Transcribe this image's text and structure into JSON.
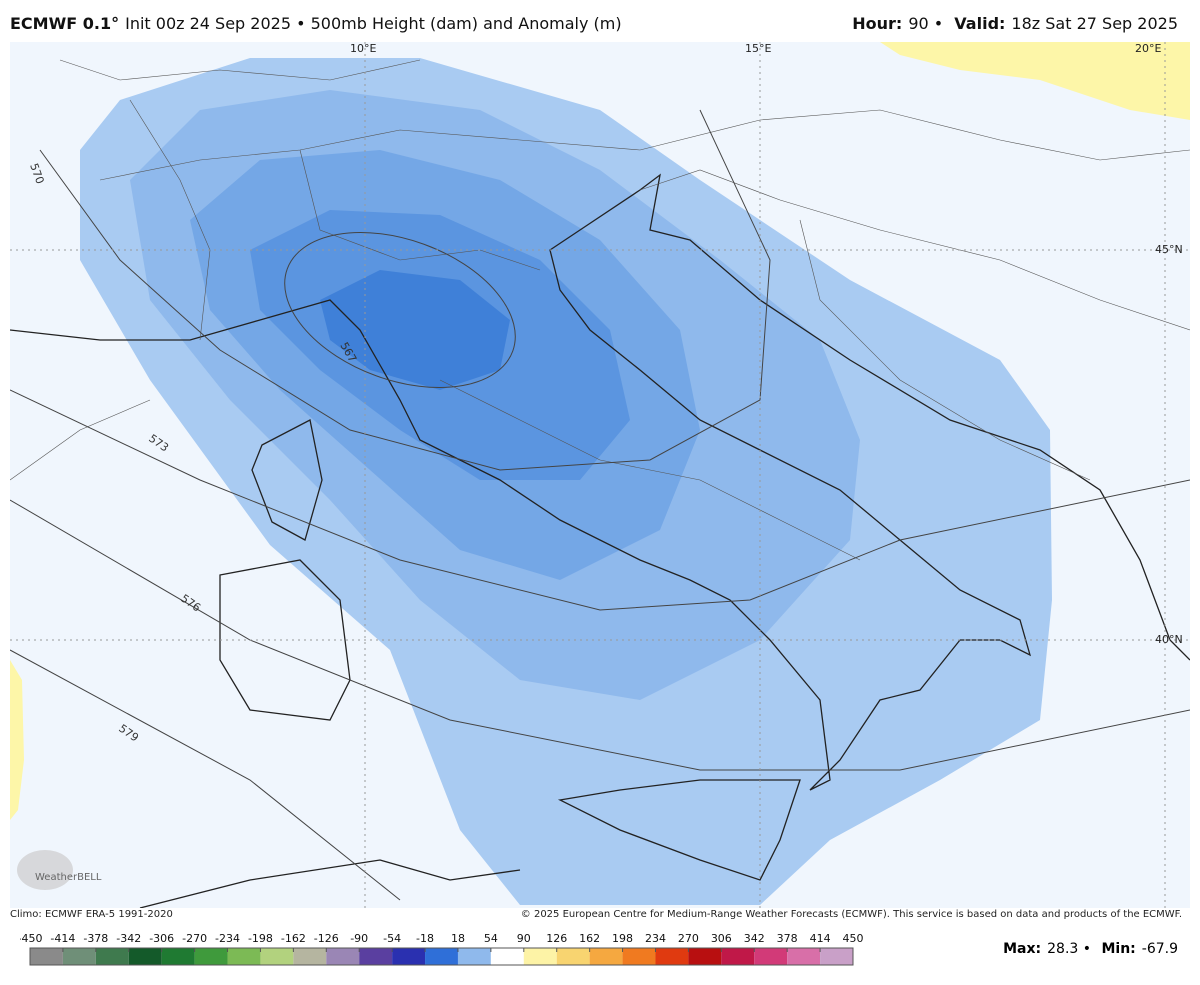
{
  "header": {
    "model": "ECMWF 0.1°",
    "description": "Init 00z 24 Sep 2025 • 500mb Height (dam) and Anomaly (m)",
    "hour_label": "Hour:",
    "hour": "90 •",
    "valid_label": "Valid:",
    "valid": "18z Sat 27 Sep 2025"
  },
  "map": {
    "longitude_labels": [
      "10°E",
      "15°E",
      "20°E"
    ],
    "latitude_labels": [
      "45°N",
      "40°N"
    ],
    "contour_labels": [
      "567",
      "570",
      "573",
      "576",
      "579"
    ]
  },
  "footer": {
    "climo": "Climo: ECMWF ERA-5 1991-2020",
    "copyright": "© 2025 European Centre for Medium-Range Weather Forecasts (ECMWF). This service is based on data and products of the ECMWF."
  },
  "colorbar": {
    "ticks": [
      -450,
      -414,
      -378,
      -342,
      -306,
      -270,
      -234,
      -198,
      -162,
      -126,
      -90,
      -54,
      -18,
      18,
      54,
      90,
      126,
      162,
      198,
      234,
      270,
      306,
      342,
      378,
      414,
      450
    ],
    "colors": [
      "#8a8a8a",
      "#6f8f78",
      "#3f7a4e",
      "#145a2a",
      "#1f7a32",
      "#3f9a3c",
      "#7cba55",
      "#b2d27e",
      "#b5b5a0",
      "#9a86b5",
      "#5a3fa0",
      "#2a30b0",
      "#2f6fd8",
      "#8fb9ec",
      "#ffffff",
      "#fdf3a6",
      "#f8d470",
      "#f5a840",
      "#f07a20",
      "#e03a10",
      "#b80f10",
      "#c01848",
      "#d23a78",
      "#d86fa8",
      "#c9a0c8"
    ]
  },
  "stats": {
    "max_label": "Max:",
    "max": "28.3 •",
    "min_label": "Min:",
    "min": "-67.9"
  }
}
